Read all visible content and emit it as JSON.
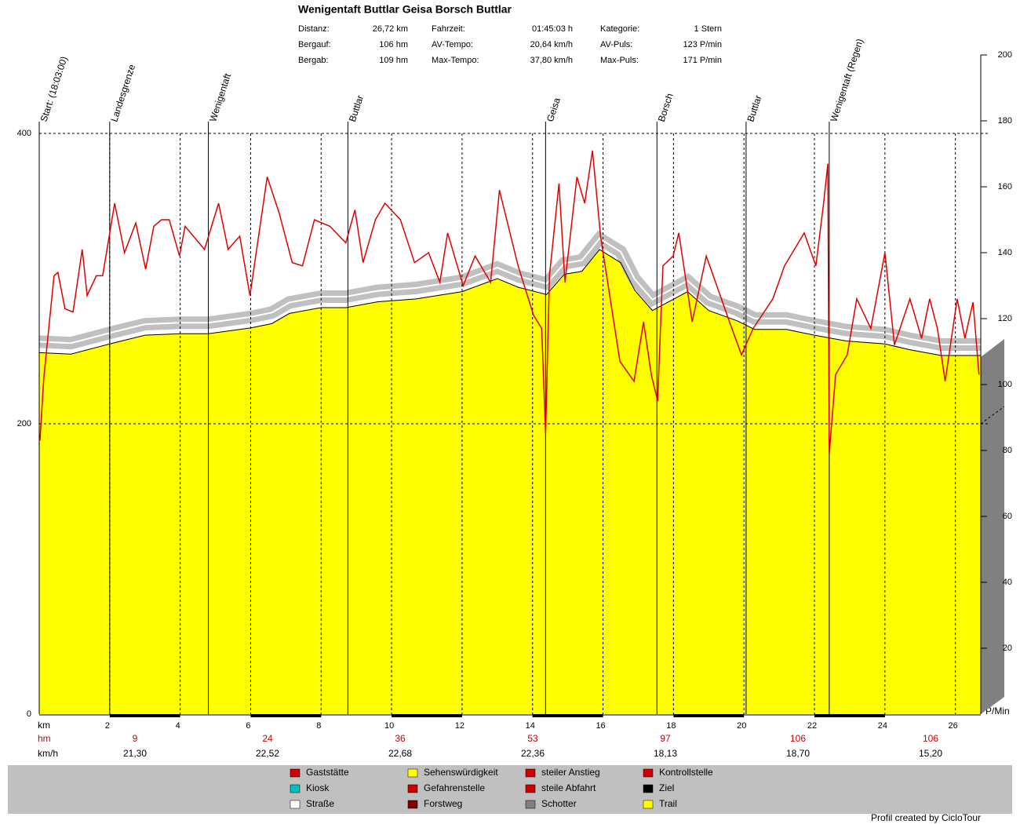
{
  "chart_data": {
    "type": "profile",
    "title": "Wenigentaft Buttlar Geisa Borsch Buttlar",
    "stats": [
      [
        "Distanz:",
        "26,72 km",
        "Fahrzeit:",
        "01:45:03 h",
        "Kategorie:",
        "1 Stern"
      ],
      [
        "Bergauf:",
        "106 hm",
        "AV-Tempo:",
        "20,64 km/h",
        "AV-Puls:",
        "123 P/min"
      ],
      [
        "Bergab:",
        "109 hm",
        "Max-Tempo:",
        "37,80 km/h",
        "Max-Puls:",
        "171 P/min"
      ]
    ],
    "waypoints": [
      {
        "name": "Start: (18:03:00)",
        "km": 0
      },
      {
        "name": "Landesgrenze",
        "km": 2.0
      },
      {
        "name": "Wenigentaft",
        "km": 4.8
      },
      {
        "name": "Buttlar",
        "km": 8.76
      },
      {
        "name": "Geisa",
        "km": 14.37
      },
      {
        "name": "Borsch",
        "km": 17.53
      },
      {
        "name": "Buttlar",
        "km": 20.06
      },
      {
        "name": "Wenigentaft (Regen)",
        "km": 22.42
      }
    ],
    "elevation": {
      "color": "#ffff00",
      "x": [
        0,
        0.9,
        2.0,
        3.0,
        4.0,
        4.8,
        6.0,
        6.6,
        7.1,
        8.0,
        8.7,
        9.6,
        10.7,
        12.0,
        13.0,
        13.6,
        14.4,
        14.9,
        15.4,
        15.9,
        16.5,
        16.9,
        17.4,
        18.4,
        19.0,
        19.8,
        20.3,
        21.2,
        22.0,
        22.9,
        24.0,
        24.7,
        25.6,
        26.72
      ],
      "values": [
        249,
        248,
        255,
        261,
        262,
        262,
        266,
        269,
        276,
        280,
        280,
        284,
        286,
        291,
        300,
        294,
        289,
        303,
        305,
        320,
        311,
        292,
        278,
        291,
        278,
        271,
        265,
        265,
        261,
        257,
        255,
        251,
        247,
        247
      ]
    },
    "pulse": {
      "color": "#e00000",
      "axis": "y2",
      "x": [
        0.02,
        0.13,
        0.42,
        0.53,
        0.73,
        0.96,
        1.22,
        1.36,
        1.62,
        1.8,
        2.14,
        2.42,
        2.74,
        3.02,
        3.25,
        3.47,
        3.69,
        3.98,
        4.14,
        4.69,
        5.09,
        5.36,
        5.69,
        5.98,
        6.47,
        6.81,
        7.18,
        7.47,
        7.81,
        8.25,
        8.7,
        8.96,
        9.19,
        9.54,
        9.81,
        10.25,
        10.65,
        11.05,
        11.37,
        11.59,
        12.03,
        12.37,
        12.81,
        13.06,
        13.59,
        14.03,
        14.26,
        14.37,
        14.48,
        14.75,
        14.92,
        15.26,
        15.48,
        15.7,
        15.93,
        16.48,
        16.88,
        17.15,
        17.37,
        17.55,
        17.7,
        17.99,
        18.15,
        18.53,
        18.93,
        19.59,
        19.93,
        20.26,
        20.82,
        21.15,
        21.71,
        22.04,
        22.26,
        22.38,
        22.42,
        22.6,
        22.93,
        23.2,
        23.6,
        24.0,
        24.27,
        24.71,
        25.04,
        25.27,
        25.49,
        25.71,
        26.05,
        26.27,
        26.5,
        26.67
      ],
      "values": [
        83,
        102,
        133,
        134,
        123,
        122,
        141,
        127,
        133,
        133,
        155,
        140,
        149,
        135,
        148,
        150,
        150,
        139,
        148,
        141,
        155,
        141,
        145,
        127,
        163,
        152,
        137,
        136,
        150,
        148,
        143,
        153,
        137,
        150,
        155,
        150,
        137,
        140,
        131,
        146,
        130,
        139,
        131,
        159,
        136,
        121,
        117,
        85,
        133,
        161,
        131,
        163,
        155,
        171,
        145,
        107,
        101,
        119,
        103,
        95,
        136,
        139,
        146,
        119,
        139,
        119,
        109,
        117,
        126,
        136,
        146,
        136,
        155,
        167,
        79,
        103,
        109,
        126,
        117,
        140,
        112,
        126,
        114,
        126,
        117,
        101,
        126,
        114,
        125,
        103
      ]
    },
    "xlim": [
      0,
      26.72
    ],
    "xticks": [
      2,
      4,
      6,
      8,
      10,
      12,
      14,
      16,
      18,
      20,
      22,
      24,
      26
    ],
    "ylim": [
      0,
      400
    ],
    "yticks": [
      0,
      200,
      400
    ],
    "y2lim": [
      0,
      200
    ],
    "y2ticks": [
      20,
      40,
      60,
      80,
      100,
      120,
      140,
      160,
      180,
      200
    ],
    "xlabel": "km",
    "y2label": "P/Min",
    "hm_label": "hm",
    "kmh_label": "km/h",
    "hm": [
      9,
      24,
      36,
      53,
      97,
      106,
      106
    ],
    "kmh": [
      "21,30",
      "22,52",
      "22,68",
      "22,36",
      "18,13",
      "18,70",
      "15,20"
    ],
    "grid": true,
    "legend": [
      {
        "label": "Gaststätte",
        "color": "#cc0000"
      },
      {
        "label": "Kiosk",
        "color": "#00c0c0"
      },
      {
        "label": "Straße",
        "color": "#ffffff"
      },
      {
        "label": "Sehenswürdigkeit",
        "color": "#ffff00"
      },
      {
        "label": "Gefahrenstelle",
        "color": "#cc0000"
      },
      {
        "label": "Forstweg",
        "color": "#800000"
      },
      {
        "label": "steiler Anstieg",
        "color": "#cc0000"
      },
      {
        "label": "steile Abfahrt",
        "color": "#cc0000"
      },
      {
        "label": "Schotter",
        "color": "#808080"
      },
      {
        "label": "Kontrollstelle",
        "color": "#cc0000"
      },
      {
        "label": "Ziel",
        "color": "#000000"
      },
      {
        "label": "Trail",
        "color": "#ffff00"
      }
    ],
    "footer": "Profil created by CicloTour"
  }
}
